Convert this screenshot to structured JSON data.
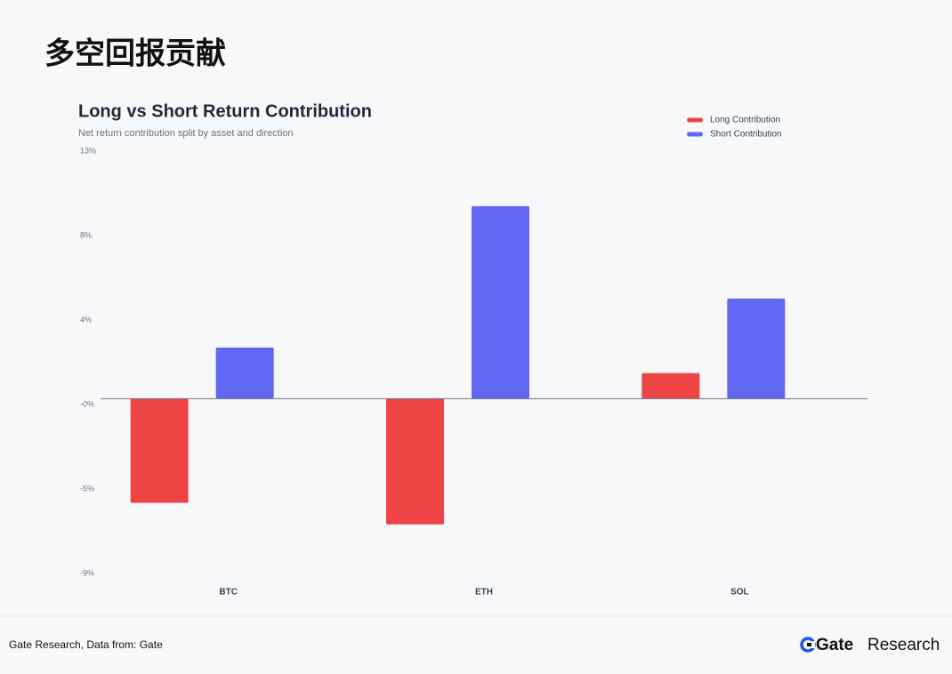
{
  "header": {
    "title": "多空回报贡献"
  },
  "chart_data": {
    "type": "bar",
    "title": "Long vs Short Return Contribution",
    "subtitle": "Net return contribution split by asset and direction",
    "categories": [
      "BTC",
      "ETH",
      "SOL"
    ],
    "series": [
      {
        "name": "Long Contribution",
        "color": "#ef4444",
        "values": [
          -5.3,
          -6.4,
          1.3
        ]
      },
      {
        "name": "Short Contribution",
        "color": "#6366f1",
        "values": [
          2.6,
          9.8,
          5.1
        ]
      }
    ],
    "ylim": [
      -8.9,
      12.6
    ],
    "yticks": [
      {
        "value": 12.6,
        "label": "13%"
      },
      {
        "value": 8.3,
        "label": "8%"
      },
      {
        "value": 4.0,
        "label": "4%"
      },
      {
        "value": -0.3,
        "label": "-0%"
      },
      {
        "value": -4.6,
        "label": "-5%"
      },
      {
        "value": -8.9,
        "label": "-9%"
      }
    ],
    "grid": false,
    "legend": "top-right"
  },
  "footer": {
    "source": "Gate Research, Data from: Gate",
    "brand": "Gate",
    "brand_suffix": "Research"
  }
}
